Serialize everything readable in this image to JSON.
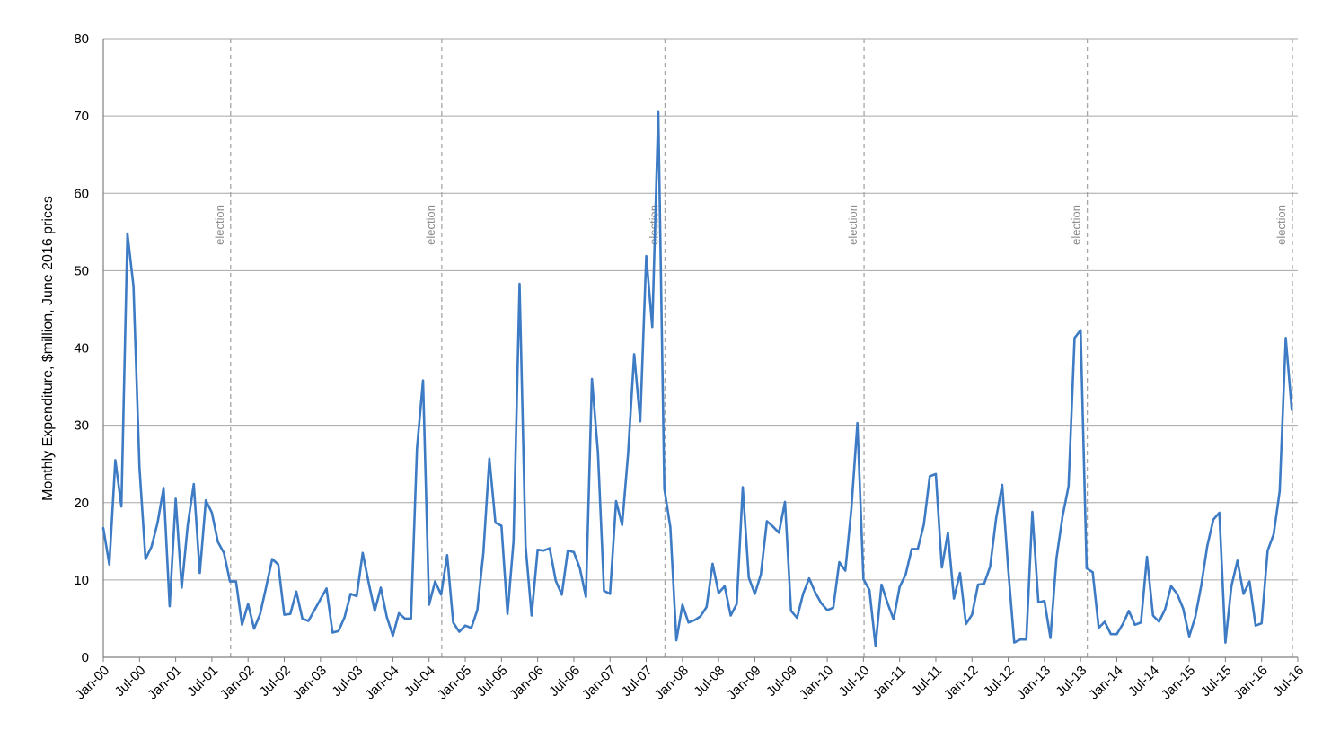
{
  "chart_data": {
    "type": "line",
    "title": "",
    "xlabel": "",
    "ylabel": "Monthly Expenditure, $million, June 2016 prices",
    "ylim": [
      0,
      80
    ],
    "yticks": [
      0,
      10,
      20,
      30,
      40,
      50,
      60,
      70,
      80
    ],
    "xlim": [
      "2000-01",
      "2016-07"
    ],
    "grid": "horizontal",
    "legend": "none",
    "colors": {
      "line": "#3d7bc4",
      "grid": "#a6a6a6",
      "axis": "#7f7f7f",
      "event": "#a6a6a6"
    },
    "xticks": [
      {
        "date": "2000-01",
        "label": "Jan-00"
      },
      {
        "date": "2000-07",
        "label": "Jul-00"
      },
      {
        "date": "2001-01",
        "label": "Jan-01"
      },
      {
        "date": "2001-07",
        "label": "Jul-01"
      },
      {
        "date": "2002-01",
        "label": "Jan-02"
      },
      {
        "date": "2002-07",
        "label": "Jul-02"
      },
      {
        "date": "2003-01",
        "label": "Jan-03"
      },
      {
        "date": "2003-07",
        "label": "Jul-03"
      },
      {
        "date": "2004-01",
        "label": "Jan-04"
      },
      {
        "date": "2004-07",
        "label": "Jul-04"
      },
      {
        "date": "2005-01",
        "label": "Jan-05"
      },
      {
        "date": "2005-07",
        "label": "Jul-05"
      },
      {
        "date": "2006-01",
        "label": "Jan-06"
      },
      {
        "date": "2006-07",
        "label": "Jul-06"
      },
      {
        "date": "2007-01",
        "label": "Jan-07"
      },
      {
        "date": "2007-07",
        "label": "Jul-07"
      },
      {
        "date": "2008-01",
        "label": "Jan-08"
      },
      {
        "date": "2008-07",
        "label": "Jul-08"
      },
      {
        "date": "2009-01",
        "label": "Jan-09"
      },
      {
        "date": "2009-07",
        "label": "Jul-09"
      },
      {
        "date": "2010-01",
        "label": "Jan-10"
      },
      {
        "date": "2010-07",
        "label": "Jul-10"
      },
      {
        "date": "2011-01",
        "label": "Jan-11"
      },
      {
        "date": "2011-07",
        "label": "Jul-11"
      },
      {
        "date": "2012-01",
        "label": "Jan-12"
      },
      {
        "date": "2012-07",
        "label": "Jul-12"
      },
      {
        "date": "2013-01",
        "label": "Jan-13"
      },
      {
        "date": "2013-07",
        "label": "Jul-13"
      },
      {
        "date": "2014-01",
        "label": "Jan-14"
      },
      {
        "date": "2014-07",
        "label": "Jul-14"
      },
      {
        "date": "2015-01",
        "label": "Jan-15"
      },
      {
        "date": "2015-07",
        "label": "Jul-15"
      },
      {
        "date": "2016-01",
        "label": "Jan-16"
      },
      {
        "date": "2016-07",
        "label": "Jul-16"
      }
    ],
    "events": [
      {
        "date": "2001-11",
        "label": "election"
      },
      {
        "date": "2004-10",
        "label": "election"
      },
      {
        "date": "2007-11",
        "label": "election"
      },
      {
        "date": "2010-08",
        "label": "election"
      },
      {
        "date": "2013-09",
        "label": "election"
      },
      {
        "date": "2016-07",
        "label": "election"
      }
    ],
    "series": [
      {
        "start": "2000-01",
        "frequency": "monthly",
        "values": [
          16.7,
          12.0,
          25.5,
          19.5,
          54.8,
          48.0,
          24.5,
          12.7,
          14.3,
          17.4,
          21.9,
          6.6,
          20.5,
          9.0,
          17.1,
          22.4,
          10.9,
          20.3,
          18.7,
          14.9,
          13.5,
          9.8,
          9.8,
          4.2,
          6.9,
          3.7,
          5.6,
          9.1,
          12.7,
          12.0,
          5.5,
          5.6,
          8.5,
          5.0,
          4.7,
          6.1,
          7.5,
          8.9,
          3.2,
          3.4,
          5.2,
          8.2,
          7.9,
          13.5,
          9.6,
          6.0,
          9.0,
          5.2,
          2.8,
          5.7,
          5.0,
          5.0,
          27.0,
          35.8,
          6.8,
          9.8,
          8.1,
          13.2,
          4.5,
          3.3,
          4.1,
          3.8,
          6.1,
          13.5,
          25.7,
          17.4,
          17.0,
          5.6,
          15.0,
          48.3,
          14.4,
          5.4,
          13.9,
          13.8,
          14.1,
          9.9,
          8.1,
          13.8,
          13.6,
          11.5,
          7.8,
          36.0,
          26.4,
          8.6,
          8.2,
          20.2,
          17.1,
          26.4,
          39.2,
          30.5,
          51.9,
          42.7,
          70.5,
          21.8,
          16.8,
          2.2,
          6.8,
          4.5,
          4.8,
          5.3,
          6.5,
          12.1,
          8.3,
          9.2,
          5.4,
          6.9,
          22.0,
          10.3,
          8.2,
          10.7,
          17.6,
          16.9,
          16.1,
          20.1,
          6.0,
          5.1,
          8.2,
          10.2,
          8.4,
          7.0,
          6.1,
          6.4,
          12.3,
          11.2,
          19.2,
          30.3,
          10.1,
          8.7,
          1.5,
          9.4,
          7.0,
          4.9,
          9.1,
          10.7,
          14.0,
          14.0,
          17.1,
          23.4,
          23.7,
          11.6,
          16.1,
          7.6,
          10.9,
          4.3,
          5.5,
          9.4,
          9.5,
          11.7,
          18.0,
          22.3,
          11.4,
          1.9,
          2.3,
          2.3,
          18.8,
          7.1,
          7.3,
          2.5,
          12.8,
          18.2,
          22.1,
          41.3,
          42.3,
          11.5,
          11.0,
          3.8,
          4.6,
          3.0,
          3.0,
          4.3,
          6.0,
          4.2,
          4.5,
          13.0,
          5.4,
          4.6,
          6.2,
          9.2,
          8.2,
          6.3,
          2.7,
          5.2,
          9.3,
          14.4,
          17.8,
          18.7,
          1.9,
          9.2,
          12.5,
          8.2,
          9.8,
          4.1,
          4.4,
          13.8,
          15.9,
          21.5,
          41.3,
          32.0
        ]
      }
    ]
  }
}
